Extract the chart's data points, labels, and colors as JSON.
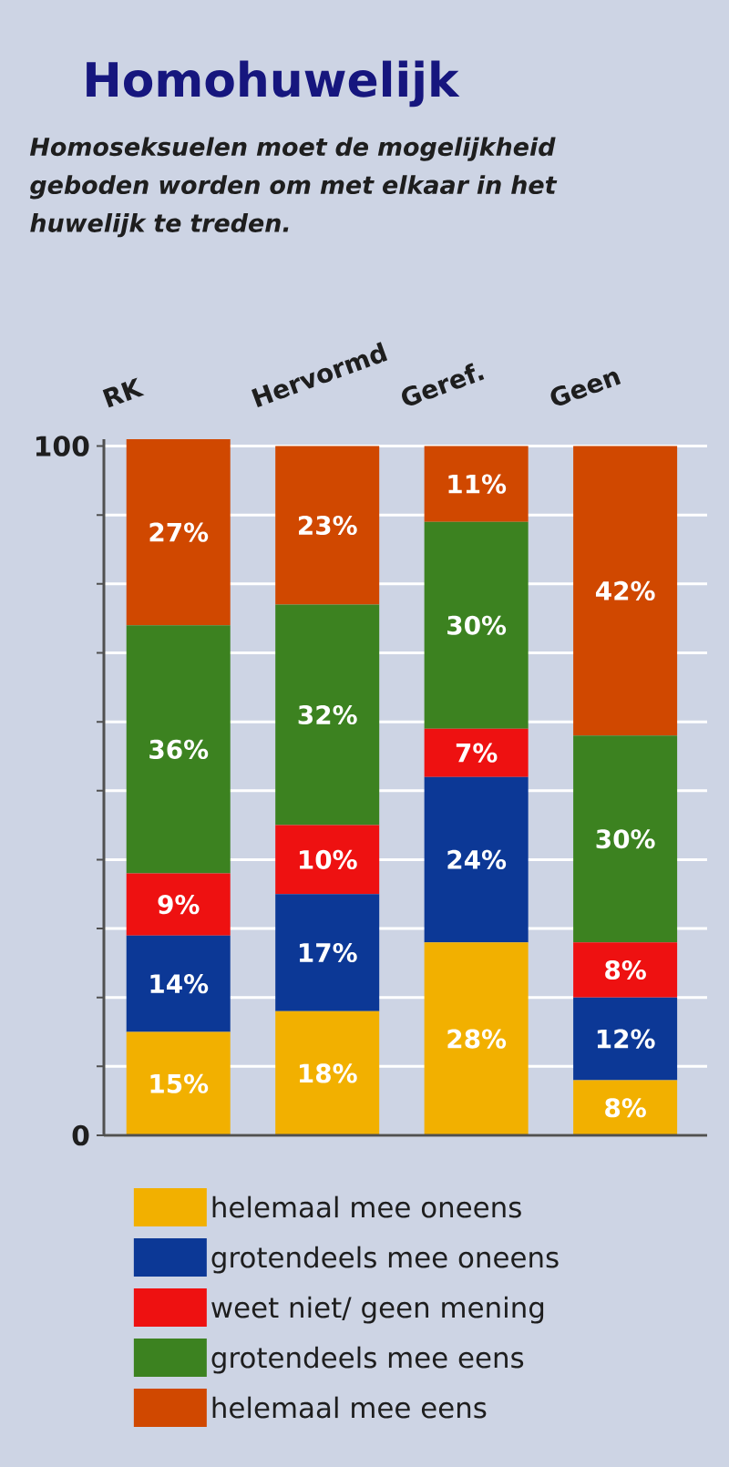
{
  "chart_data": {
    "type": "bar",
    "stacked": true,
    "title": "Homohuwelijk",
    "subtitle": "Homoseksuelen moet de mogelijkheid geboden worden om met elkaar in het huwelijk te treden.",
    "categories": [
      "RK",
      "Hervormd",
      "Geref.",
      "Geen"
    ],
    "series": [
      {
        "name": "helemaal mee oneens",
        "color": "#f2b000",
        "values": [
          15,
          18,
          28,
          8
        ],
        "value_labels": [
          "15%",
          "18%",
          "28%",
          "8%"
        ]
      },
      {
        "name": "grotendeels mee oneens",
        "color": "#0c3896",
        "values": [
          14,
          17,
          24,
          12
        ],
        "value_labels": [
          "14%",
          "17%",
          "24%",
          "12%"
        ]
      },
      {
        "name": "weet niet/ geen mening",
        "color": "#ee1111",
        "values": [
          9,
          10,
          7,
          8
        ],
        "value_labels": [
          "9%",
          "10%",
          "7%",
          "8%"
        ]
      },
      {
        "name": "grotendeels mee eens",
        "color": "#3c8220",
        "values": [
          36,
          32,
          30,
          30
        ],
        "value_labels": [
          "36%",
          "32%",
          "30%",
          "30%"
        ]
      },
      {
        "name": "helemaal mee eens",
        "color": "#d04800",
        "values": [
          27,
          23,
          11,
          42
        ],
        "value_labels": [
          "27%",
          "23%",
          "11%",
          "42%"
        ]
      }
    ],
    "ylim": [
      0,
      101
    ],
    "yticks": [
      0,
      {
        "value": 10,
        "label": null
      },
      {
        "value": 20,
        "label": null
      },
      {
        "value": 30,
        "label": null
      },
      {
        "value": 40,
        "label": null
      },
      {
        "value": 50,
        "label": null
      },
      {
        "value": 60,
        "label": null
      },
      {
        "value": 70,
        "label": null
      },
      {
        "value": 80,
        "label": null
      },
      {
        "value": 90,
        "label": null
      },
      100
    ],
    "grid": "y",
    "legend": "bottom"
  }
}
